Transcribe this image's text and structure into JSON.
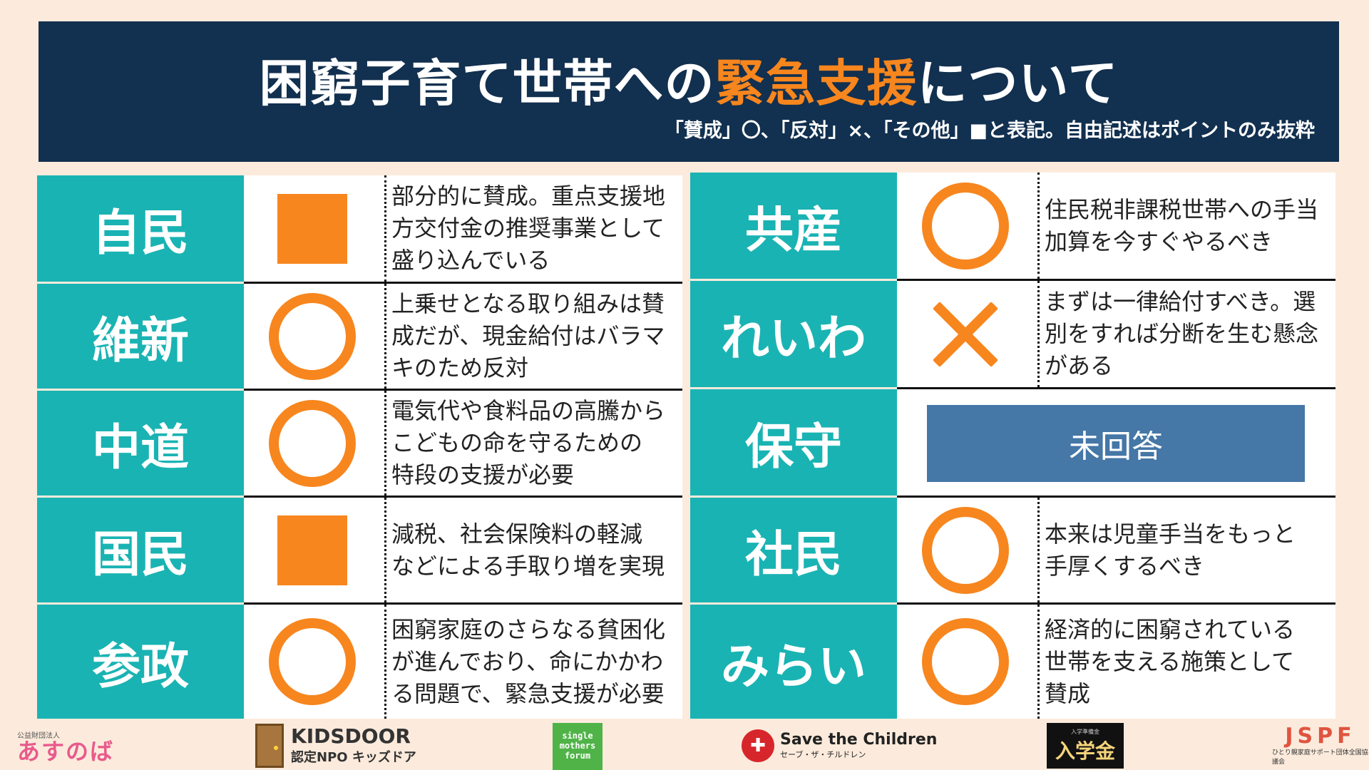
{
  "header": {
    "title_part1": "困窮子育て世帯への",
    "title_highlight": "緊急支援",
    "title_part2": "について",
    "subtitle": "「賛成」〇、「反対」×、「その他」■と表記。自由記述はポイントのみ抜粋"
  },
  "colors": {
    "header_bg": "#12304f",
    "accent": "#f7861e",
    "party_bg": "#1ab3b3",
    "unanswered_bg": "#4577a7",
    "page_bg": "#fcebdc"
  },
  "left_parties": [
    {
      "name": "自民",
      "mark": "square",
      "comment": [
        "部分的に賛成。重点支援地",
        "方交付金の推奨事業として",
        "盛り込んでいる"
      ]
    },
    {
      "name": "維新",
      "mark": "circle",
      "comment": [
        "上乗せとなる取り組みは賛",
        "成だが、現金給付はバラマ",
        "キのため反対"
      ]
    },
    {
      "name": "中道",
      "mark": "circle",
      "comment": [
        "電気代や食料品の高騰から",
        "こどもの命を守るための",
        "特段の支援が必要"
      ]
    },
    {
      "name": "国民",
      "mark": "square",
      "comment": [
        "減税、社会保険料の軽減",
        "などによる手取り増を実現"
      ]
    },
    {
      "name": "参政",
      "mark": "circle",
      "comment": [
        "困窮家庭のさらなる貧困化",
        "が進んでおり、命にかかわ",
        "る問題で、緊急支援が必要"
      ]
    }
  ],
  "right_parties": [
    {
      "name": "共産",
      "mark": "circle",
      "comment": [
        "住民税非課税世帯への手当",
        "加算を今すぐやるべき"
      ]
    },
    {
      "name": "れいわ",
      "mark": "cross",
      "comment": [
        "まずは一律給付すべき。選",
        "別をすれば分断を生む懸念",
        "がある"
      ]
    },
    {
      "name": "保守",
      "mark": "none",
      "unanswered": "未回答"
    },
    {
      "name": "社民",
      "mark": "circle",
      "comment": [
        "本来は児童手当をもっと",
        "手厚くするべき"
      ]
    },
    {
      "name": "みらい",
      "mark": "circle",
      "comment": [
        "経済的に困窮されている",
        "世帯を支える施策として",
        "賛成"
      ]
    }
  ],
  "footer": {
    "asunoba_small": "公益財団法人",
    "asunoba_name": "あすのば",
    "kidsdoor_name": "KIDSDOOR",
    "kidsdoor_sub": "認定NPO キッズドア",
    "smf_lines": [
      "single",
      "mothers",
      "forum"
    ],
    "stc_name": "Save the Children",
    "stc_sub": "セーブ・ザ・チルドレン",
    "nyugaku_small": "入学準備金",
    "nyugaku_name": "入学金",
    "jspf_name": "JSPF",
    "jspf_sub": "ひとり親家庭サポート団体全国協議会"
  }
}
